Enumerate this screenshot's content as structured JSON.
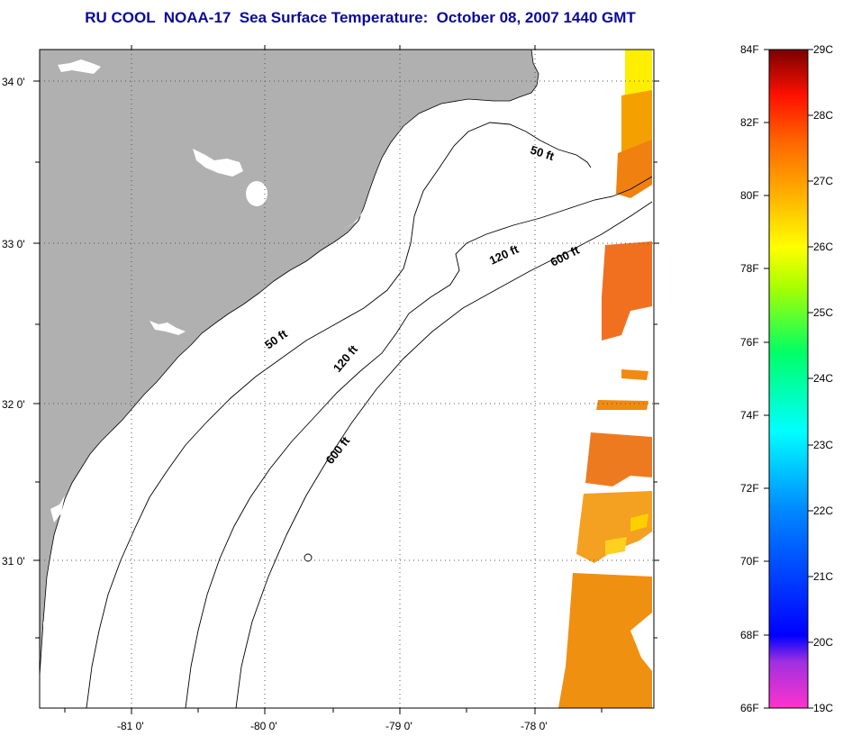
{
  "title": "RU COOL  NOAA-17  Sea Surface Temperature:  October 08, 2007 1440 GMT",
  "map": {
    "x_ticks": [
      "-81 0'",
      "-80 0'",
      "-79 0'",
      "-78 0'"
    ],
    "y_ticks": [
      "34 0'",
      "33 0'",
      "32 0'",
      "31 0'"
    ],
    "contour_labels": [
      {
        "text": "50 ft",
        "isobath": "50 ft"
      },
      {
        "text": "120 ft",
        "isobath": "120 ft"
      },
      {
        "text": "600 ft",
        "isobath": "600 ft"
      },
      {
        "text": "50 ft",
        "isobath": "50 ft"
      },
      {
        "text": "120 ft",
        "isobath": "120 ft"
      },
      {
        "text": "600 ft",
        "isobath": "600 ft"
      }
    ],
    "colors": {
      "land": "#b0b0b0",
      "ocean": "#ffffff",
      "grid": "#555555"
    }
  },
  "colorbar": {
    "fahrenheit": [
      "84F",
      "82F",
      "80F",
      "78F",
      "76F",
      "74F",
      "72F",
      "70F",
      "68F",
      "66F"
    ],
    "celsius": [
      "29C",
      "28C",
      "27C",
      "26C",
      "25C",
      "24C",
      "23C",
      "22C",
      "21C",
      "20C",
      "19C"
    ]
  }
}
